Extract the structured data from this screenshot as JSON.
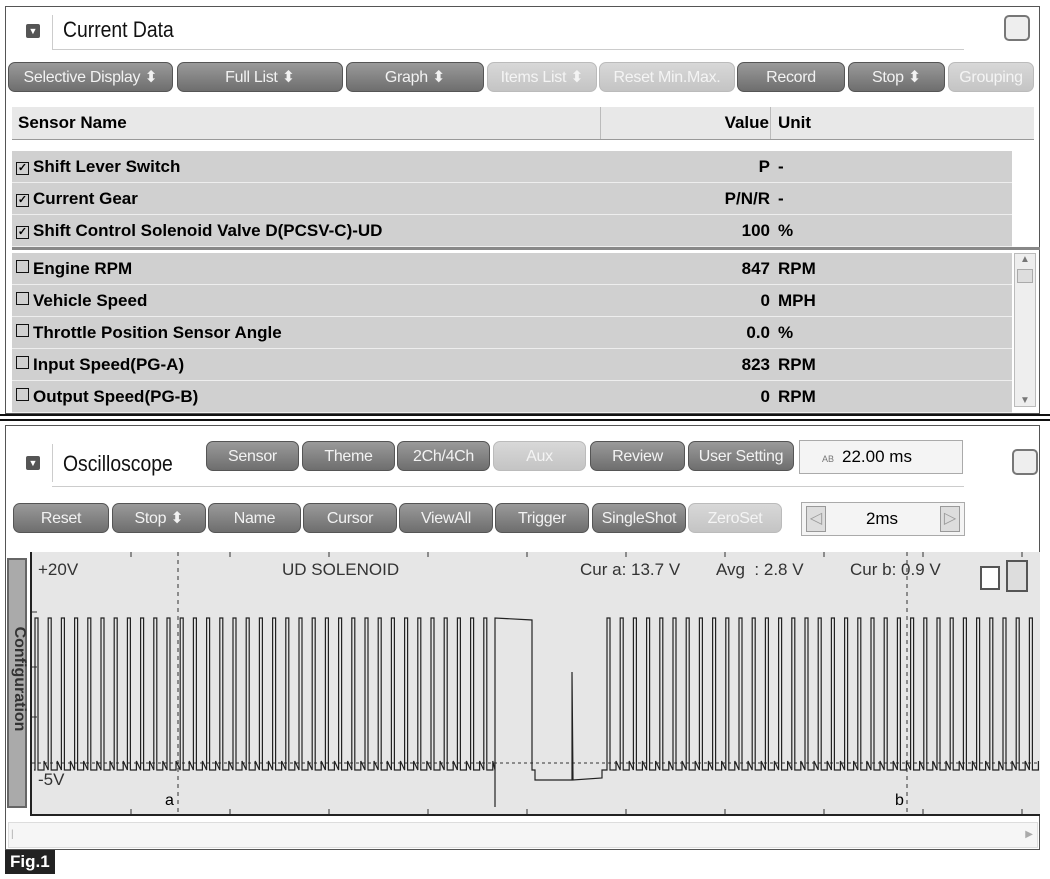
{
  "current_data": {
    "title": "Current Data",
    "toolbar": [
      {
        "label": "Selective Display ⬍",
        "enabled": true
      },
      {
        "label": "Full List ⬍",
        "enabled": true
      },
      {
        "label": "Graph ⬍",
        "enabled": true
      },
      {
        "label": "Items List ⬍",
        "enabled": false
      },
      {
        "label": "Reset Min.Max.",
        "enabled": false
      },
      {
        "label": "Record",
        "enabled": true
      },
      {
        "label": "Stop ⬍",
        "enabled": true
      },
      {
        "label": "Grouping",
        "enabled": false
      }
    ],
    "columns": {
      "name": "Sensor Name",
      "value": "Value",
      "unit": "Unit"
    },
    "selected_rows": [
      {
        "checked": true,
        "name": "Shift Lever Switch",
        "value": "P",
        "unit": "-"
      },
      {
        "checked": true,
        "name": "Current Gear",
        "value": "P/N/R",
        "unit": "-"
      },
      {
        "checked": true,
        "name": "Shift Control Solenoid Valve D(PCSV-C)-UD",
        "value": "100",
        "unit": "%"
      }
    ],
    "rows": [
      {
        "checked": false,
        "name": "Engine RPM",
        "value": "847",
        "unit": "RPM"
      },
      {
        "checked": false,
        "name": "Vehicle Speed",
        "value": "0",
        "unit": "MPH"
      },
      {
        "checked": false,
        "name": "Throttle Position Sensor Angle",
        "value": "0.0",
        "unit": "%"
      },
      {
        "checked": false,
        "name": "Input Speed(PG-A)",
        "value": "823",
        "unit": "RPM"
      },
      {
        "checked": false,
        "name": "Output Speed(PG-B)",
        "value": "0",
        "unit": "RPM"
      }
    ]
  },
  "oscilloscope": {
    "title": "Oscilloscope",
    "toolbar1": [
      {
        "label": "Sensor",
        "enabled": true
      },
      {
        "label": "Theme",
        "enabled": true
      },
      {
        "label": "2Ch/4Ch",
        "enabled": true
      },
      {
        "label": "Aux",
        "enabled": false
      },
      {
        "label": "Review",
        "enabled": true
      },
      {
        "label": "User Setting",
        "enabled": true
      }
    ],
    "time_readout": "22.00 ms",
    "time_icon": "AB",
    "toolbar2": [
      {
        "label": "Reset",
        "enabled": true
      },
      {
        "label": "Stop ⬍",
        "enabled": true
      },
      {
        "label": "Name",
        "enabled": true
      },
      {
        "label": "Cursor",
        "enabled": true
      },
      {
        "label": "ViewAll",
        "enabled": true
      },
      {
        "label": "Trigger",
        "enabled": true
      },
      {
        "label": "SingleShot",
        "enabled": true
      },
      {
        "label": "ZeroSet",
        "enabled": false
      }
    ],
    "timebase": "2ms",
    "side_tab": "Configuration",
    "y_max": "+20V",
    "y_min": "-5V",
    "channel": "UD SOLENOID",
    "cur_a": "Cur a: 13.7 V",
    "avg": "Avg  : 2.8 V",
    "cur_b": "Cur b: 0.9 V",
    "cursor_a": "a",
    "cursor_b": "b"
  },
  "figure_label": "Fig.1"
}
